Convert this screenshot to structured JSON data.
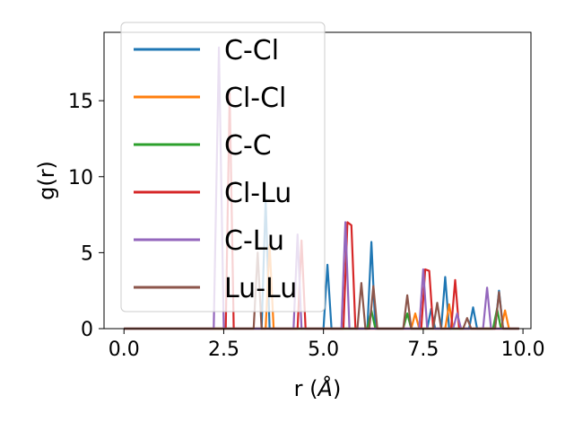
{
  "chart_data": {
    "type": "line",
    "title": "",
    "xlabel": "r (",
    "xlabel_unit": "Å",
    "xlabel_close": ")",
    "ylabel": "g(r)",
    "xlim": [
      -0.5,
      10.2
    ],
    "ylim": [
      0,
      19.5
    ],
    "xticks": [
      0.0,
      2.5,
      5.0,
      7.5,
      10.0
    ],
    "xtick_labels": [
      "0.0",
      "2.5",
      "5.0",
      "7.5",
      "10.0"
    ],
    "yticks": [
      0,
      5,
      10,
      15
    ],
    "ytick_labels": [
      "0",
      "5",
      "10",
      "15"
    ],
    "grid": false,
    "legend_position": "upper-left",
    "series": [
      {
        "name": "C-Cl",
        "color": "#1f77b4",
        "points": [
          [
            0,
            0
          ],
          [
            3.45,
            0
          ],
          [
            3.55,
            8.5
          ],
          [
            3.65,
            0
          ],
          [
            5.0,
            0
          ],
          [
            5.1,
            4.2
          ],
          [
            5.2,
            0
          ],
          [
            6.1,
            0
          ],
          [
            6.2,
            5.7
          ],
          [
            6.3,
            0
          ],
          [
            7.6,
            0
          ],
          [
            7.7,
            1.3
          ],
          [
            7.8,
            0
          ],
          [
            7.95,
            0
          ],
          [
            8.05,
            3.4
          ],
          [
            8.15,
            0
          ],
          [
            8.65,
            0
          ],
          [
            8.75,
            1.4
          ],
          [
            8.85,
            0
          ],
          [
            9.3,
            0
          ],
          [
            9.4,
            2.5
          ],
          [
            9.5,
            0
          ],
          [
            9.9,
            0
          ]
        ]
      },
      {
        "name": "Cl-Cl",
        "color": "#ff7f0e",
        "points": [
          [
            0,
            0
          ],
          [
            3.55,
            0
          ],
          [
            3.65,
            5.5
          ],
          [
            3.75,
            0
          ],
          [
            7.2,
            0
          ],
          [
            7.3,
            1.0
          ],
          [
            7.4,
            0
          ],
          [
            8.05,
            0
          ],
          [
            8.15,
            1.6
          ],
          [
            8.25,
            0
          ],
          [
            9.45,
            0
          ],
          [
            9.55,
            1.2
          ],
          [
            9.65,
            0
          ],
          [
            9.9,
            0
          ]
        ]
      },
      {
        "name": "C-C",
        "color": "#2ca02c",
        "points": [
          [
            0,
            0
          ],
          [
            6.1,
            0
          ],
          [
            6.2,
            1.2
          ],
          [
            6.3,
            0
          ],
          [
            7.0,
            0
          ],
          [
            7.1,
            1.0
          ],
          [
            7.2,
            0
          ],
          [
            9.25,
            0
          ],
          [
            9.35,
            1.3
          ],
          [
            9.45,
            0
          ],
          [
            9.9,
            0
          ]
        ]
      },
      {
        "name": "Cl-Lu",
        "color": "#d62728",
        "points": [
          [
            0,
            0
          ],
          [
            2.55,
            0
          ],
          [
            2.65,
            15.5
          ],
          [
            2.75,
            0
          ],
          [
            4.35,
            0
          ],
          [
            4.45,
            5.8
          ],
          [
            4.55,
            0
          ],
          [
            5.5,
            0
          ],
          [
            5.6,
            7.0
          ],
          [
            5.7,
            6.8
          ],
          [
            5.8,
            0
          ],
          [
            7.45,
            0
          ],
          [
            7.55,
            3.9
          ],
          [
            7.65,
            3.8
          ],
          [
            7.75,
            0
          ],
          [
            8.2,
            0
          ],
          [
            8.3,
            3.2
          ],
          [
            8.4,
            0
          ],
          [
            9.9,
            0
          ]
        ]
      },
      {
        "name": "C-Lu",
        "color": "#9467bd",
        "points": [
          [
            0,
            0
          ],
          [
            2.25,
            0
          ],
          [
            2.38,
            18.5
          ],
          [
            2.5,
            0
          ],
          [
            4.25,
            0
          ],
          [
            4.35,
            6.2
          ],
          [
            4.45,
            0
          ],
          [
            5.45,
            0
          ],
          [
            5.55,
            7.0
          ],
          [
            5.65,
            0
          ],
          [
            7.4,
            0
          ],
          [
            7.5,
            3.9
          ],
          [
            7.6,
            0
          ],
          [
            8.25,
            0
          ],
          [
            8.35,
            1.0
          ],
          [
            8.45,
            0
          ],
          [
            9.0,
            0
          ],
          [
            9.1,
            2.7
          ],
          [
            9.2,
            0
          ],
          [
            9.9,
            0
          ]
        ]
      },
      {
        "name": "Lu-Lu",
        "color": "#8c564b",
        "points": [
          [
            0,
            0
          ],
          [
            3.25,
            0
          ],
          [
            3.35,
            5.0
          ],
          [
            3.45,
            0
          ],
          [
            5.85,
            0
          ],
          [
            5.95,
            3.0
          ],
          [
            6.05,
            0
          ],
          [
            6.15,
            0
          ],
          [
            6.25,
            2.8
          ],
          [
            6.35,
            0
          ],
          [
            7.0,
            0
          ],
          [
            7.1,
            2.2
          ],
          [
            7.2,
            0
          ],
          [
            7.75,
            0
          ],
          [
            7.85,
            1.7
          ],
          [
            7.95,
            0
          ],
          [
            8.5,
            0
          ],
          [
            8.6,
            0.7
          ],
          [
            8.7,
            0
          ],
          [
            9.3,
            0
          ],
          [
            9.4,
            2.4
          ],
          [
            9.5,
            0
          ],
          [
            9.9,
            0
          ]
        ]
      }
    ]
  }
}
